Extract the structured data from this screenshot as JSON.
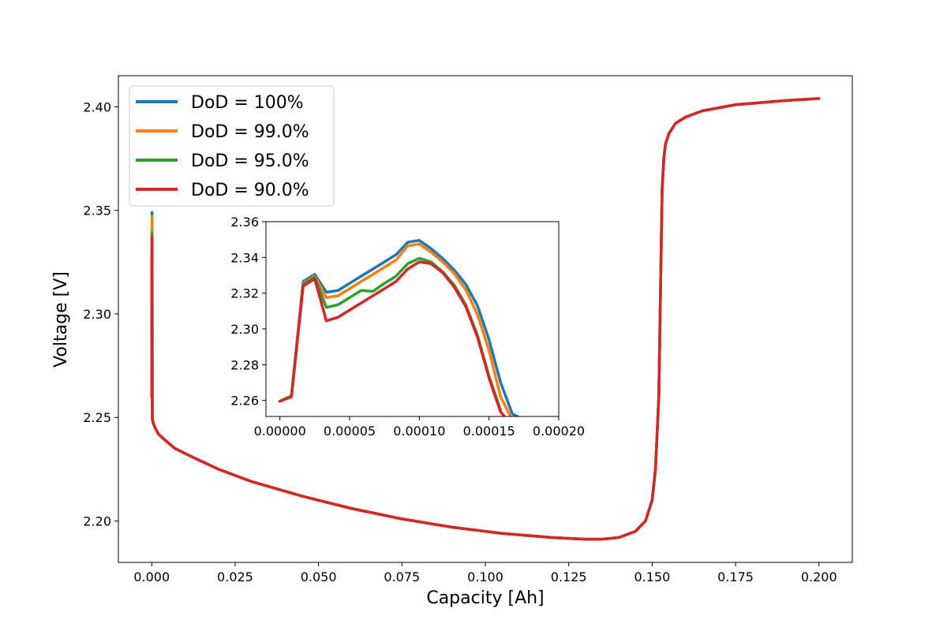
{
  "chart_data": [
    {
      "type": "line",
      "xlabel": "Capacity [Ah]",
      "ylabel": "Voltage [V]",
      "xlim": [
        -0.01,
        0.21
      ],
      "ylim": [
        2.18,
        2.415
      ],
      "xticks": [
        "0.000",
        "0.025",
        "0.050",
        "0.075",
        "0.100",
        "0.125",
        "0.150",
        "0.175",
        "0.200"
      ],
      "yticks": [
        "2.20",
        "2.25",
        "2.30",
        "2.35",
        "2.40"
      ],
      "legend": "top-left",
      "grid": false,
      "series": [
        {
          "name": "DoD = 100%",
          "color": "#1f77b4",
          "x": [
            0.0,
            0.0,
            3e-05,
            0.0001,
            0.00016,
            0.0002,
            0.0005,
            0.001,
            0.002,
            0.004,
            0.007,
            0.012,
            0.02,
            0.03,
            0.045,
            0.06,
            0.075,
            0.09,
            0.105,
            0.12,
            0.13,
            0.135,
            0.14,
            0.145,
            0.148,
            0.15,
            0.151,
            0.152,
            0.1525,
            0.153,
            0.1535,
            0.154,
            0.155,
            0.157,
            0.16,
            0.165,
            0.175,
            0.19,
            0.2
          ],
          "y": [
            2.26,
            2.26,
            2.33,
            2.349,
            2.253,
            2.249,
            2.247,
            2.245,
            2.242,
            2.239,
            2.235,
            2.231,
            2.225,
            2.219,
            2.212,
            2.206,
            2.201,
            2.197,
            2.194,
            2.192,
            2.1912,
            2.1912,
            2.192,
            2.195,
            2.2,
            2.21,
            2.225,
            2.26,
            2.31,
            2.36,
            2.375,
            2.382,
            2.387,
            2.392,
            2.395,
            2.398,
            2.401,
            2.403,
            2.404
          ]
        },
        {
          "name": "DoD = 99.0%",
          "color": "#ff7f0e",
          "x": [
            0.0,
            0.0,
            3e-05,
            0.0001,
            0.00016,
            0.0002,
            0.0005,
            0.001,
            0.002,
            0.004,
            0.007,
            0.012,
            0.02,
            0.03,
            0.045,
            0.06,
            0.075,
            0.09,
            0.105,
            0.12,
            0.13,
            0.135,
            0.14,
            0.145,
            0.148,
            0.15,
            0.151,
            0.152,
            0.1525,
            0.153,
            0.1535,
            0.154,
            0.155,
            0.157,
            0.16,
            0.165,
            0.175,
            0.19,
            0.2
          ],
          "y": [
            2.26,
            2.26,
            2.329,
            2.347,
            2.252,
            2.249,
            2.247,
            2.245,
            2.242,
            2.239,
            2.235,
            2.231,
            2.225,
            2.219,
            2.212,
            2.206,
            2.201,
            2.197,
            2.194,
            2.192,
            2.1912,
            2.1912,
            2.192,
            2.195,
            2.2,
            2.21,
            2.225,
            2.26,
            2.31,
            2.36,
            2.375,
            2.382,
            2.387,
            2.392,
            2.395,
            2.398,
            2.401,
            2.403,
            2.404
          ]
        },
        {
          "name": "DoD = 95.0%",
          "color": "#2ca02c",
          "x": [
            0.0,
            0.0,
            3e-05,
            0.0001,
            0.00016,
            0.0002,
            0.0005,
            0.001,
            0.002,
            0.004,
            0.007,
            0.012,
            0.02,
            0.03,
            0.045,
            0.06,
            0.075,
            0.09,
            0.105,
            0.12,
            0.13,
            0.135,
            0.14,
            0.145,
            0.148,
            0.15,
            0.151,
            0.152,
            0.1525,
            0.153,
            0.1535,
            0.154,
            0.155,
            0.157,
            0.16,
            0.165,
            0.175,
            0.19,
            0.2
          ],
          "y": [
            2.26,
            2.26,
            2.326,
            2.339,
            2.25,
            2.249,
            2.247,
            2.245,
            2.242,
            2.239,
            2.235,
            2.231,
            2.225,
            2.219,
            2.212,
            2.206,
            2.201,
            2.197,
            2.194,
            2.192,
            2.1912,
            2.1912,
            2.192,
            2.195,
            2.2,
            2.21,
            2.225,
            2.26,
            2.31,
            2.36,
            2.375,
            2.382,
            2.387,
            2.392,
            2.395,
            2.398,
            2.401,
            2.403,
            2.404
          ]
        },
        {
          "name": "DoD = 90.0%",
          "color": "#d62728",
          "x": [
            0.0,
            0.0,
            3e-05,
            0.0001,
            0.00016,
            0.0002,
            0.0005,
            0.001,
            0.002,
            0.004,
            0.007,
            0.012,
            0.02,
            0.03,
            0.045,
            0.06,
            0.075,
            0.09,
            0.105,
            0.12,
            0.13,
            0.135,
            0.14,
            0.145,
            0.148,
            0.15,
            0.151,
            0.152,
            0.1525,
            0.153,
            0.1535,
            0.154,
            0.155,
            0.157,
            0.16,
            0.165,
            0.175,
            0.19,
            0.2
          ],
          "y": [
            2.26,
            2.26,
            2.325,
            2.337,
            2.25,
            2.249,
            2.247,
            2.245,
            2.242,
            2.239,
            2.235,
            2.231,
            2.225,
            2.219,
            2.212,
            2.206,
            2.201,
            2.197,
            2.194,
            2.192,
            2.1912,
            2.1912,
            2.192,
            2.195,
            2.2,
            2.21,
            2.225,
            2.26,
            2.31,
            2.36,
            2.375,
            2.382,
            2.387,
            2.392,
            2.395,
            2.398,
            2.401,
            2.403,
            2.404
          ]
        }
      ]
    },
    {
      "type": "line",
      "xlim": [
        -1e-05,
        0.0002
      ],
      "ylim": [
        2.251,
        2.36
      ],
      "xticks": [
        "0.00000",
        "0.00005",
        "0.00010",
        "0.00015",
        "0.00020"
      ],
      "yticks": [
        "2.26",
        "2.28",
        "2.30",
        "2.32",
        "2.34",
        "2.36"
      ],
      "grid": false,
      "series": [
        {
          "name": "DoD = 100%",
          "color": "#1f77b4",
          "x": [
            0.0,
            8.3e-06,
            1.67e-05,
            2.5e-05,
            3.33e-05,
            4.17e-05,
            5e-05,
            5.83e-05,
            6.67e-05,
            7.5e-05,
            8.33e-05,
            9.17e-05,
            0.0001,
            0.0001083,
            0.0001167,
            0.000125,
            0.0001333,
            0.0001417,
            0.00015,
            0.0001583,
            0.0001667,
            0.000175
          ],
          "y": [
            2.2595,
            2.2625,
            2.3265,
            2.3305,
            2.3205,
            2.3215,
            2.3255,
            2.3295,
            2.3335,
            2.3375,
            2.3415,
            2.3485,
            2.3495,
            2.345,
            2.3395,
            2.333,
            2.325,
            2.313,
            2.294,
            2.27,
            2.2525,
            2.249
          ]
        },
        {
          "name": "DoD = 99.0%",
          "color": "#ff7f0e",
          "x": [
            0.0,
            8.3e-06,
            1.67e-05,
            2.5e-05,
            3.33e-05,
            4.17e-05,
            5e-05,
            5.83e-05,
            6.67e-05,
            7.5e-05,
            8.33e-05,
            9.17e-05,
            0.0001,
            0.0001083,
            0.0001167,
            0.000125,
            0.0001333,
            0.0001417,
            0.00015,
            0.0001583,
            0.0001667
          ],
          "y": [
            2.2595,
            2.2625,
            2.3255,
            2.3295,
            2.3175,
            2.3185,
            2.3225,
            2.3265,
            2.3305,
            2.3345,
            2.3385,
            2.3465,
            2.3475,
            2.343,
            2.3375,
            2.331,
            2.322,
            2.308,
            2.288,
            2.262,
            2.249
          ]
        },
        {
          "name": "DoD = 95.0%",
          "color": "#2ca02c",
          "x": [
            0.0,
            8.3e-06,
            1.67e-05,
            2.5e-05,
            3.33e-05,
            4.17e-05,
            5e-05,
            5.83e-05,
            6.67e-05,
            7.5e-05,
            8.33e-05,
            9.17e-05,
            0.0001,
            0.0001083,
            0.0001167,
            0.000125,
            0.0001333,
            0.0001417,
            0.00015,
            0.0001583
          ],
          "y": [
            2.2595,
            2.2625,
            2.325,
            2.329,
            2.312,
            2.3135,
            2.3175,
            2.3215,
            2.321,
            2.3255,
            2.3295,
            2.3365,
            2.3395,
            2.3375,
            2.332,
            2.3245,
            2.3135,
            2.2965,
            2.2735,
            2.2545
          ]
        },
        {
          "name": "DoD = 90.0%",
          "color": "#d62728",
          "x": [
            0.0,
            8.3e-06,
            1.67e-05,
            2.5e-05,
            3.33e-05,
            4.17e-05,
            5e-05,
            5.83e-05,
            6.67e-05,
            7.5e-05,
            8.33e-05,
            9.17e-05,
            0.0001,
            0.0001083,
            0.0001167,
            0.000125,
            0.0001333,
            0.0001417,
            0.00015,
            0.0001583,
            0.0001617
          ],
          "y": [
            2.2595,
            2.262,
            2.324,
            2.328,
            2.3045,
            2.3065,
            2.3105,
            2.3145,
            2.3185,
            2.3225,
            2.3265,
            2.3335,
            2.3375,
            2.3365,
            2.3315,
            2.3235,
            2.3125,
            2.2955,
            2.2725,
            2.2535,
            2.2505
          ]
        }
      ]
    }
  ]
}
